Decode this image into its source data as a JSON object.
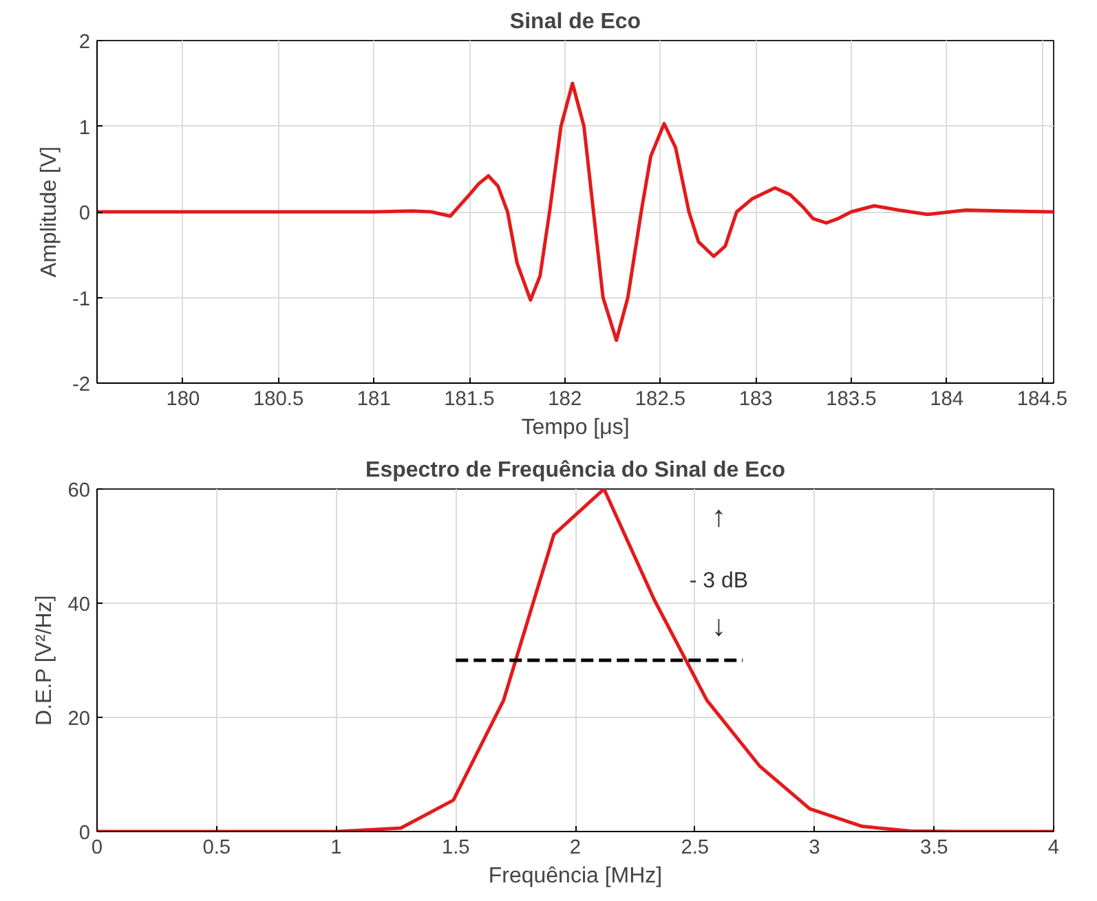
{
  "chart_data": [
    {
      "type": "line",
      "title": "Sinal de Eco",
      "xlabel": "Tempo [μs]",
      "ylabel": "Amplitude [V]",
      "x": [
        179.55,
        180.0,
        180.5,
        181.0,
        181.2,
        181.3,
        181.4,
        181.5,
        181.55,
        181.6,
        181.65,
        181.7,
        181.75,
        181.82,
        181.87,
        181.92,
        181.98,
        182.04,
        182.1,
        182.15,
        182.2,
        182.27,
        182.33,
        182.4,
        182.45,
        182.52,
        182.58,
        182.65,
        182.7,
        182.78,
        182.84,
        182.9,
        182.98,
        183.1,
        183.18,
        183.25,
        183.3,
        183.37,
        183.43,
        183.5,
        183.62,
        183.75,
        183.9,
        184.1,
        184.3,
        184.56
      ],
      "series": [
        {
          "color": "#e31a1c",
          "values": [
            0,
            0,
            0,
            0,
            0.01,
            0,
            -0.05,
            0.2,
            0.33,
            0.42,
            0.3,
            0,
            -0.6,
            -1.03,
            -0.75,
            0,
            1.0,
            1.5,
            1.0,
            0,
            -1.0,
            -1.5,
            -1.0,
            0,
            0.65,
            1.03,
            0.75,
            0,
            -0.35,
            -0.52,
            -0.4,
            0,
            0.15,
            0.28,
            0.2,
            0.05,
            -0.08,
            -0.13,
            -0.08,
            0,
            0.07,
            0.02,
            -0.03,
            0.02,
            0.01,
            0
          ]
        }
      ],
      "xlim": [
        179.55,
        184.56
      ],
      "xticks": [
        180,
        180.5,
        181,
        181.5,
        182,
        182.5,
        183,
        183.5,
        184,
        184.5
      ],
      "ylim": [
        -2,
        2
      ],
      "yticks": [
        -2,
        -1,
        0,
        1,
        2
      ],
      "grid": true,
      "line_style": "solid",
      "marker": "none"
    },
    {
      "type": "line",
      "title": "Espectro de Frequência do Sinal de Eco",
      "xlabel": "Frequência [MHz]",
      "ylabel": "D.E.P [V²/Hz]",
      "series": [
        {
          "color": "#e31a1c",
          "x": [
            0,
            0.5,
            1.0,
            1.27,
            1.49,
            1.7,
            1.91,
            2.12,
            2.33,
            2.55,
            2.77,
            2.98,
            3.2,
            3.4,
            3.6,
            4.0
          ],
          "values": [
            0,
            0,
            0,
            0.6,
            5.5,
            23,
            52,
            60,
            40.6,
            23,
            11.5,
            4,
            0.9,
            0.1,
            0,
            0
          ]
        },
        {
          "type": "line",
          "color": "#000000",
          "line_style": "dashed",
          "x": [
            1.5,
            2.7
          ],
          "values": [
            30,
            30
          ]
        }
      ],
      "annotations": [
        "↑",
        "- 3 dB",
        "↓"
      ],
      "xlim": [
        0,
        4
      ],
      "xticks": [
        0,
        0.5,
        1,
        1.5,
        2,
        2.5,
        3,
        3.5,
        4
      ],
      "ylim": [
        0,
        60
      ],
      "yticks": [
        0,
        20,
        40,
        60
      ],
      "grid": true,
      "line_style": "solid",
      "marker": "none"
    }
  ]
}
